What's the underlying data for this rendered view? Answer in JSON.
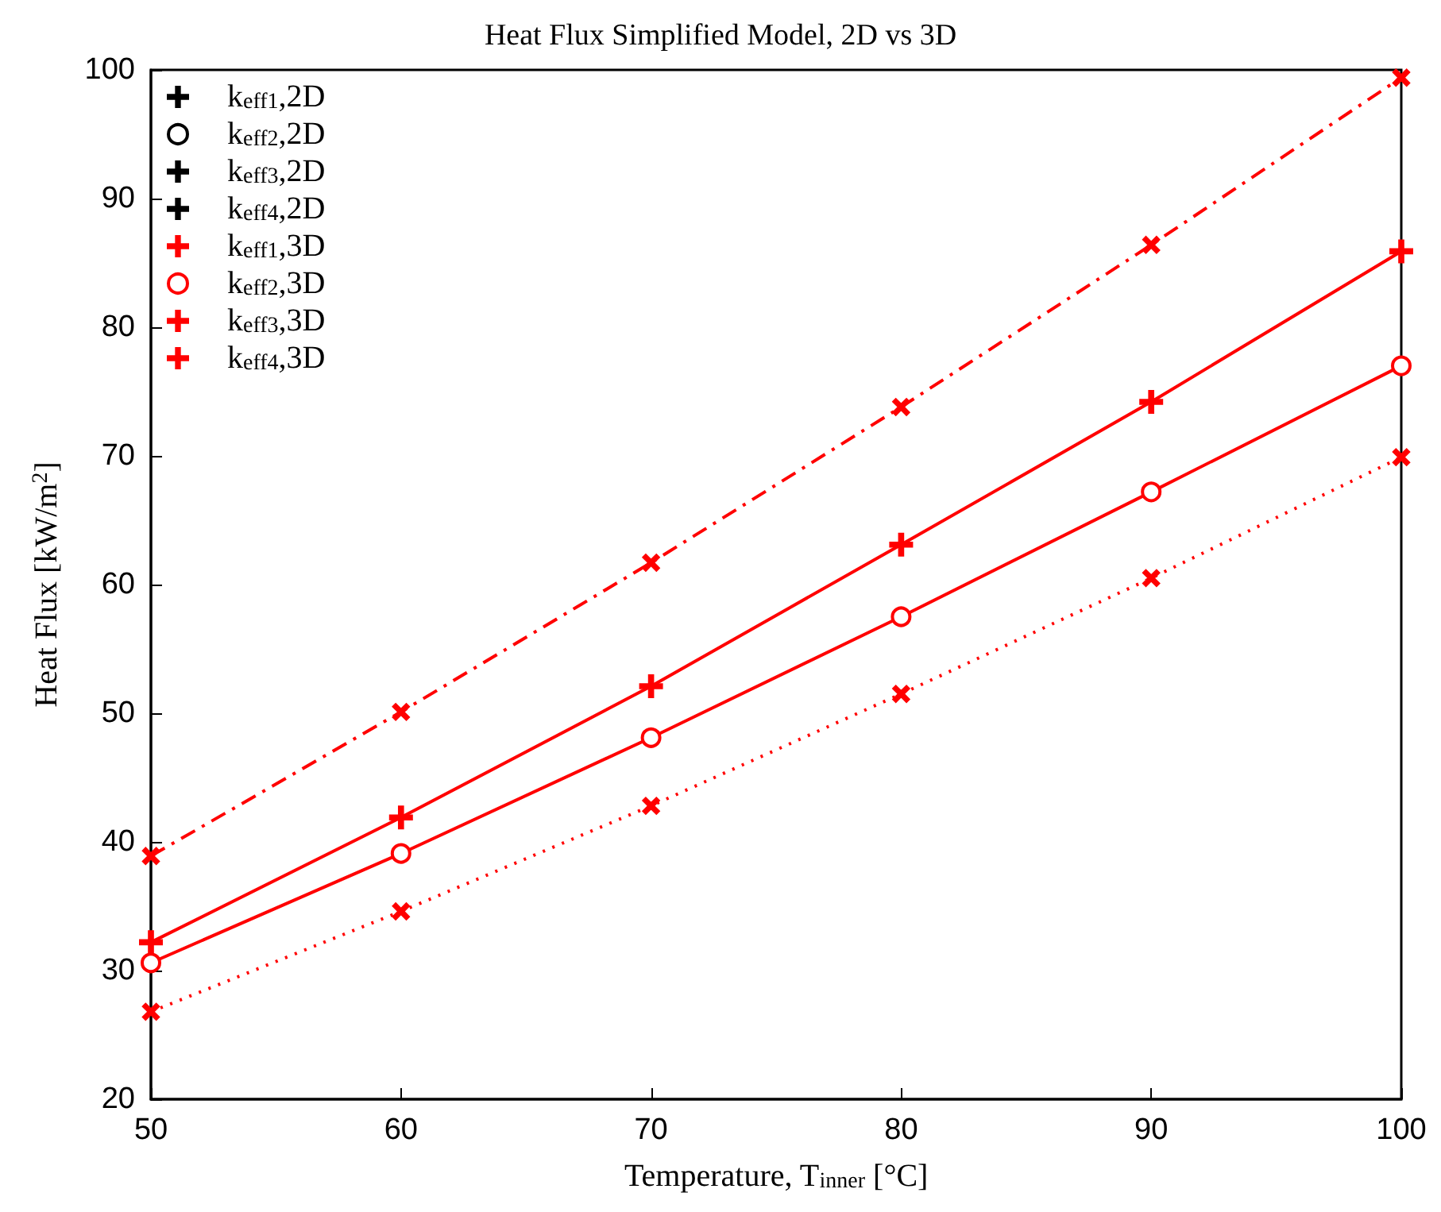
{
  "chart_data": {
    "type": "line",
    "title": "Heat Flux Simplified Model, 2D vs 3D",
    "xlabel": "Temperature, T$_{inner}$ [°C]",
    "ylabel": "Heat Flux [kW/m$^{2}$]",
    "x": [
      50,
      60,
      70,
      80,
      90,
      100
    ],
    "xlim": [
      50,
      100
    ],
    "xticks": [
      50,
      60,
      70,
      80,
      90,
      100
    ],
    "ylim": [
      20,
      100
    ],
    "yticks": [
      20,
      30,
      40,
      50,
      60,
      70,
      80,
      90,
      100
    ],
    "grid": false,
    "legend": "top left",
    "series": [
      {
        "name": "k$_{eff1}$,2D",
        "color": "#000000",
        "marker": "cross",
        "line_style": "dotted",
        "values": [
          null,
          null,
          null,
          null,
          null,
          null
        ]
      },
      {
        "name": "k$_{eff2}$,2D",
        "color": "#000000",
        "marker": "circle",
        "line_style": "solid",
        "values": [
          null,
          null,
          null,
          null,
          null,
          null
        ]
      },
      {
        "name": "k$_{eff3}$,2D",
        "color": "#000000",
        "marker": "plus",
        "line_style": "solid",
        "values": [
          null,
          null,
          null,
          null,
          null,
          null
        ]
      },
      {
        "name": "k$_{eff4}$,2D",
        "color": "#000000",
        "marker": "cross",
        "line_style": "dashdot",
        "values": [
          null,
          null,
          null,
          null,
          null,
          null
        ]
      },
      {
        "name": "k$_{eff1}$,3D",
        "color": "#ff0000",
        "marker": "cross",
        "line_style": "dotted",
        "values": [
          26.8,
          34.6,
          42.8,
          51.5,
          60.5,
          69.9
        ]
      },
      {
        "name": "k$_{eff2}$,3D",
        "color": "#ff0000",
        "marker": "circle",
        "line_style": "solid",
        "values": [
          30.6,
          39.1,
          48.1,
          57.5,
          67.2,
          77.0
        ]
      },
      {
        "name": "k$_{eff3}$,3D",
        "color": "#ff0000",
        "marker": "plus",
        "line_style": "solid",
        "values": [
          32.2,
          41.9,
          52.1,
          63.1,
          74.2,
          85.9
        ]
      },
      {
        "name": "k$_{eff4}$,3D",
        "color": "#ff0000",
        "marker": "cross",
        "line_style": "dashdot",
        "values": [
          38.9,
          50.1,
          61.7,
          73.8,
          86.4,
          99.4
        ]
      }
    ]
  }
}
